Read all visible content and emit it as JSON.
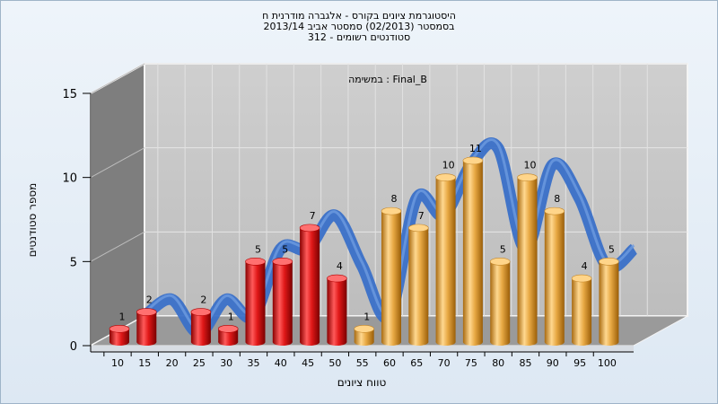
{
  "chart_data": {
    "type": "bar",
    "title_lines": [
      "היסטוגרמת ציונים בקורס - אלגברה מודרנית ח",
      "בסמסטר  (02/2013)  סמסטר אביב 2013/14",
      "סטודנטים רשומים - 312"
    ],
    "inner_label": "במשימה : Final_B",
    "xlabel": "טווח ציונים",
    "ylabel": "מספר סטודנטים",
    "categories": [
      "10",
      "15",
      "20",
      "25",
      "30",
      "35",
      "40",
      "45",
      "50",
      "55",
      "60",
      "65",
      "70",
      "75",
      "80",
      "85",
      "90",
      "95",
      "100"
    ],
    "values": [
      1,
      2,
      0,
      2,
      1,
      5,
      5,
      7,
      4,
      1,
      8,
      7,
      10,
      11,
      5,
      10,
      8,
      4,
      5
    ],
    "bar_colors": [
      "red",
      "red",
      "red",
      "red",
      "red",
      "red",
      "red",
      "red",
      "red",
      "orange",
      "orange",
      "orange",
      "orange",
      "orange",
      "orange",
      "orange",
      "orange",
      "orange",
      "orange"
    ],
    "y_ticks": [
      0,
      5,
      10,
      15
    ],
    "ylim": [
      0,
      15
    ],
    "colors": {
      "fail_bar": "#dd1a1a",
      "pass_bar": "#e8a944",
      "ribbon": "#3a70c8",
      "ribbon_low": "#707070",
      "back_wall": "#c4c4c4",
      "side_wall": "#7e7e7e",
      "floor": "#9a9a9a"
    }
  }
}
